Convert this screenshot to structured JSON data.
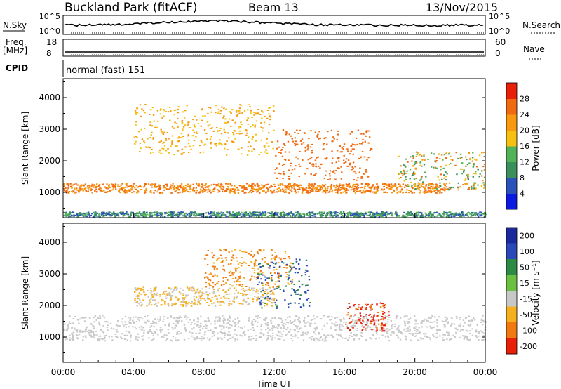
{
  "header": {
    "title": "Buckland Park (fitACF)",
    "beam": "Beam 13",
    "date": "13/Nov/2015"
  },
  "noise_panel": {
    "left_label": "N.Sky",
    "left_ticks": [
      "10^5",
      "10^0"
    ],
    "right_label": "N.Search",
    "right_ticks": [
      "10^5",
      "10^0"
    ]
  },
  "freq_panel": {
    "left_label": "Freq.",
    "left_unit": "[MHz]",
    "left_ticks": [
      "18",
      "8"
    ],
    "right_label": "Nave",
    "right_ticks": [
      "60",
      "0"
    ]
  },
  "cpid": {
    "label": "CPID",
    "value": "normal (fast) 151"
  },
  "chart_data": [
    {
      "type": "heatmap",
      "name": "power",
      "ylabel": "Slant Range [km]",
      "ylim": [
        200,
        4600
      ],
      "yticks": [
        1000,
        2000,
        3000,
        4000
      ],
      "colorbar": {
        "label": "Power [dB]",
        "ticks": [
          4,
          8,
          12,
          16,
          20,
          24,
          28
        ],
        "colors": [
          "#0a1ae0",
          "#2a52b8",
          "#3a8f5a",
          "#52b258",
          "#f5c010",
          "#f79a10",
          "#f06a10",
          "#e8200a"
        ]
      },
      "features": [
        {
          "feature": "near-range ionospheric band",
          "time_h": [
            0,
            22
          ],
          "range_km": [
            1000,
            1300
          ],
          "power_db": [
            20,
            28
          ]
        },
        {
          "feature": "rising echo (4-12 UT)",
          "time_h": [
            4,
            12
          ],
          "range_km": [
            2200,
            3800
          ],
          "power_db": [
            16,
            24
          ]
        },
        {
          "feature": "afternoon enhancement",
          "time_h": [
            12,
            17.5
          ],
          "range_km": [
            1400,
            3000
          ],
          "power_db": [
            24,
            28
          ]
        },
        {
          "feature": "evening descending echo",
          "time_h": [
            19,
            24
          ],
          "range_km": [
            1100,
            2300
          ],
          "power_db": [
            8,
            28
          ]
        },
        {
          "feature": "ground scatter floor",
          "time_h": [
            0,
            24
          ],
          "range_km": [
            250,
            400
          ],
          "power_db": [
            4,
            16
          ]
        }
      ]
    },
    {
      "type": "heatmap",
      "name": "velocity",
      "ylabel": "Slant Range [km]",
      "xlabel": "Time UT",
      "xticks": [
        "00:00",
        "04:00",
        "08:00",
        "12:00",
        "16:00",
        "20:00",
        "00:00"
      ],
      "ylim": [
        200,
        4600
      ],
      "yticks": [
        1000,
        2000,
        3000,
        4000
      ],
      "colorbar": {
        "label": "Velocity [m s⁻¹]",
        "ticks": [
          "200",
          "100",
          "50",
          "15",
          "-15",
          "-50",
          "-100",
          "-200"
        ],
        "colors": [
          "#1a2a9a",
          "#2a48b8",
          "#2c8a44",
          "#6cc040",
          "#c8c8c8",
          "#f5b020",
          "#f07a10",
          "#e8200a"
        ]
      },
      "features": [
        {
          "feature": "near-range ground scatter",
          "time_h": [
            0,
            24
          ],
          "range_km": [
            900,
            1700
          ],
          "velocity": [
            -15,
            15
          ]
        },
        {
          "feature": "morning band",
          "time_h": [
            4,
            12
          ],
          "range_km": [
            2000,
            2600
          ],
          "velocity": [
            -50,
            15
          ]
        },
        {
          "feature": "negative velocity patch",
          "time_h": [
            8,
            13
          ],
          "range_km": [
            2600,
            3800
          ],
          "velocity": [
            -100,
            -15
          ]
        },
        {
          "feature": "positive velocity patch",
          "time_h": [
            11,
            14
          ],
          "range_km": [
            1900,
            3500
          ],
          "velocity": [
            50,
            200
          ]
        },
        {
          "feature": "strong negative patch",
          "time_h": [
            16,
            18.5
          ],
          "range_km": [
            1200,
            2100
          ],
          "velocity": [
            -200,
            -50
          ]
        }
      ]
    }
  ]
}
